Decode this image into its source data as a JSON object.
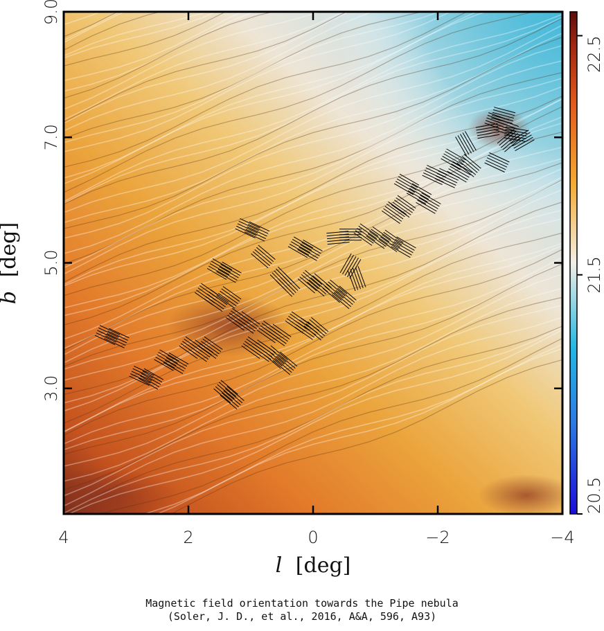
{
  "caption": {
    "line1": "Magnetic field orientation towards the Pipe nebula",
    "line2": "(Soler, J. D., et al., 2016, A&A, 596, A93)"
  },
  "colors": {
    "low": "#1b0dd9",
    "mid_low": "#23b7e3",
    "mid": "#f3efe6",
    "mid_high": "#f4aa30",
    "high": "#5e0d0a",
    "vectors": "#000000"
  },
  "chart_data": {
    "type": "heatmap",
    "title": "",
    "xlabel_symbol": "l",
    "xlabel_unit": "[deg]",
    "ylabel_symbol": "b",
    "ylabel_unit": "[deg]",
    "xlim": [
      4,
      -4
    ],
    "ylim": [
      1.0,
      9.0
    ],
    "x_ticks": [
      4,
      2,
      0,
      -2,
      -4
    ],
    "x_tick_labels": [
      "4",
      "2",
      "0",
      "−2",
      "−4"
    ],
    "y_ticks": [
      3.0,
      5.0,
      7.0,
      9.0
    ],
    "y_tick_labels": [
      "3.0",
      "5.0",
      "7.0",
      "9.0"
    ],
    "colorbar": {
      "range": [
        20.5,
        22.6
      ],
      "ticks": [
        20.5,
        21.5,
        22.5
      ],
      "tick_labels": [
        "20.5",
        "21.5",
        "22.5"
      ],
      "placement": "right"
    },
    "polarization_vectors": [
      {
        "l": 3.3,
        "b": 3.85,
        "angle": -25
      },
      {
        "l": 3.15,
        "b": 3.8,
        "angle": -25
      },
      {
        "l": 2.75,
        "b": 3.2,
        "angle": -25
      },
      {
        "l": 2.6,
        "b": 3.15,
        "angle": -30
      },
      {
        "l": 2.35,
        "b": 3.45,
        "angle": -30
      },
      {
        "l": 2.2,
        "b": 3.4,
        "angle": -30
      },
      {
        "l": 1.95,
        "b": 3.65,
        "angle": -35
      },
      {
        "l": 1.8,
        "b": 3.6,
        "angle": -35
      },
      {
        "l": 1.65,
        "b": 3.65,
        "angle": -35
      },
      {
        "l": 1.4,
        "b": 2.95,
        "angle": -40
      },
      {
        "l": 1.3,
        "b": 2.85,
        "angle": -40
      },
      {
        "l": 1.7,
        "b": 4.5,
        "angle": -35
      },
      {
        "l": 1.55,
        "b": 4.4,
        "angle": -35
      },
      {
        "l": 1.35,
        "b": 4.45,
        "angle": -35
      },
      {
        "l": 1.5,
        "b": 4.9,
        "angle": -30
      },
      {
        "l": 1.35,
        "b": 4.85,
        "angle": -30
      },
      {
        "l": 1.2,
        "b": 4.1,
        "angle": -35
      },
      {
        "l": 1.05,
        "b": 4.05,
        "angle": -35
      },
      {
        "l": 0.95,
        "b": 3.65,
        "angle": -35
      },
      {
        "l": 0.8,
        "b": 3.6,
        "angle": -35
      },
      {
        "l": 0.7,
        "b": 3.9,
        "angle": -35
      },
      {
        "l": 0.55,
        "b": 3.85,
        "angle": -35
      },
      {
        "l": 0.45,
        "b": 3.4,
        "angle": -40
      },
      {
        "l": 0.6,
        "b": 3.5,
        "angle": -40
      },
      {
        "l": 1.05,
        "b": 5.55,
        "angle": -25
      },
      {
        "l": 0.9,
        "b": 5.5,
        "angle": -25
      },
      {
        "l": 0.8,
        "b": 5.1,
        "angle": -40
      },
      {
        "l": 0.5,
        "b": 4.75,
        "angle": -45
      },
      {
        "l": 0.4,
        "b": 4.65,
        "angle": -45
      },
      {
        "l": 0.25,
        "b": 4.05,
        "angle": -35
      },
      {
        "l": 0.1,
        "b": 3.95,
        "angle": -35
      },
      {
        "l": -0.05,
        "b": 3.95,
        "angle": -40
      },
      {
        "l": 0.05,
        "b": 4.7,
        "angle": -40
      },
      {
        "l": -0.1,
        "b": 4.65,
        "angle": -40
      },
      {
        "l": 0.2,
        "b": 5.25,
        "angle": -30
      },
      {
        "l": 0.05,
        "b": 5.2,
        "angle": -30
      },
      {
        "l": -0.35,
        "b": 4.55,
        "angle": -40
      },
      {
        "l": -0.5,
        "b": 4.45,
        "angle": -40
      },
      {
        "l": -0.6,
        "b": 4.95,
        "angle": 60
      },
      {
        "l": -0.7,
        "b": 4.75,
        "angle": -70
      },
      {
        "l": -0.4,
        "b": 5.4,
        "angle": 5
      },
      {
        "l": -0.6,
        "b": 5.45,
        "angle": 0
      },
      {
        "l": -0.85,
        "b": 5.45,
        "angle": -35
      },
      {
        "l": -1.05,
        "b": 5.4,
        "angle": -35
      },
      {
        "l": -1.25,
        "b": 5.35,
        "angle": -35
      },
      {
        "l": -1.45,
        "b": 5.25,
        "angle": -30
      },
      {
        "l": -1.3,
        "b": 5.8,
        "angle": -35
      },
      {
        "l": -1.45,
        "b": 5.9,
        "angle": -35
      },
      {
        "l": -1.5,
        "b": 6.25,
        "angle": -30
      },
      {
        "l": -1.7,
        "b": 6.1,
        "angle": -30
      },
      {
        "l": -1.85,
        "b": 5.95,
        "angle": -30
      },
      {
        "l": -1.95,
        "b": 6.4,
        "angle": -25
      },
      {
        "l": -2.15,
        "b": 6.35,
        "angle": -25
      },
      {
        "l": -2.35,
        "b": 6.45,
        "angle": -30
      },
      {
        "l": -2.5,
        "b": 6.55,
        "angle": -40
      },
      {
        "l": -2.25,
        "b": 6.65,
        "angle": -30
      },
      {
        "l": -2.45,
        "b": 6.9,
        "angle": -60
      },
      {
        "l": -2.95,
        "b": 6.6,
        "angle": -25
      },
      {
        "l": -2.8,
        "b": 7.1,
        "angle": 10
      },
      {
        "l": -2.95,
        "b": 7.25,
        "angle": -20
      },
      {
        "l": -3.1,
        "b": 7.15,
        "angle": -20
      },
      {
        "l": -3.25,
        "b": 7.05,
        "angle": -10
      },
      {
        "l": -3.15,
        "b": 6.95,
        "angle": 40
      },
      {
        "l": -3.35,
        "b": 6.95,
        "angle": 30
      },
      {
        "l": -3.05,
        "b": 7.35,
        "angle": -15
      }
    ]
  }
}
